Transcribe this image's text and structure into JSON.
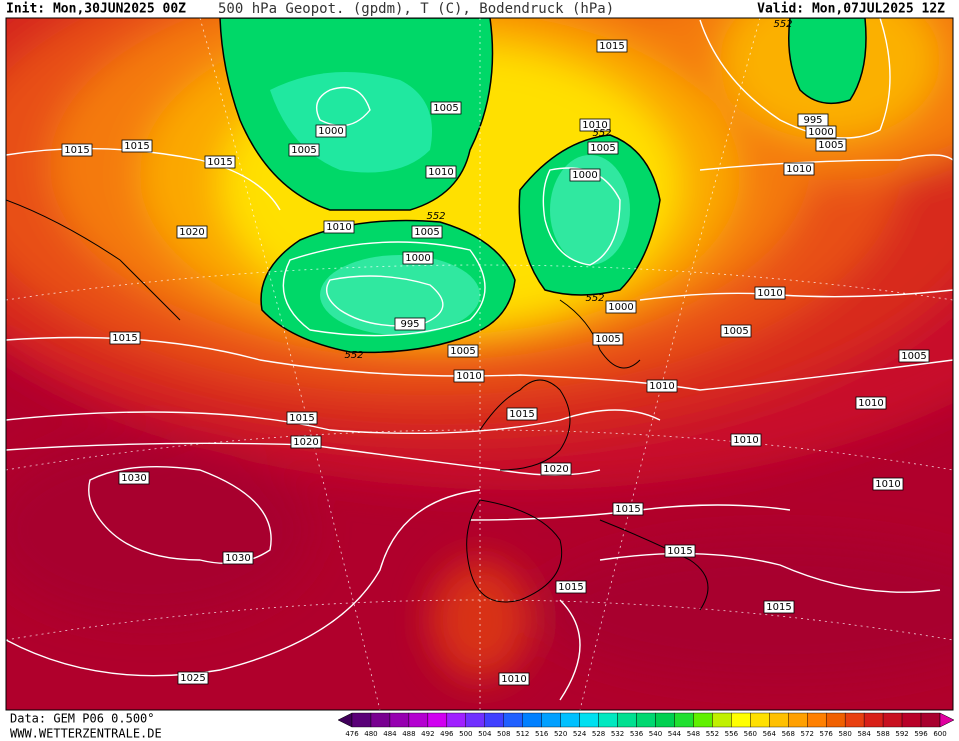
{
  "header": {
    "init": "Init: Mon,30JUN2025 00Z",
    "title": "500 hPa Geopot. (gpdm), T (C), Bodendruck (hPa)",
    "valid": "Valid: Mon,07JUL2025 12Z"
  },
  "map": {
    "labels": [
      "1015",
      "552",
      "1005",
      "1000",
      "1005",
      "1015",
      "1015",
      "1015",
      "1010",
      "1010",
      "552",
      "1005",
      "995",
      "1000",
      "1005",
      "1010",
      "1000",
      "552",
      "1010",
      "1005",
      "1020",
      "1000",
      "1010",
      "552",
      "1000",
      "995",
      "1005",
      "1015",
      "1005",
      "552",
      "1005",
      "1005",
      "1010",
      "1010",
      "1010",
      "1015",
      "1015",
      "1020",
      "1010",
      "1030",
      "1020",
      "1010",
      "1015",
      "1030",
      "1015",
      "1015",
      "1015",
      "1025",
      "1010"
    ]
  },
  "footer": {
    "data": "Data: GEM P06 0.500°",
    "site": "WWW.WETTERZENTRALE.DE"
  },
  "legend": {
    "values": [
      476,
      480,
      484,
      488,
      492,
      496,
      500,
      504,
      508,
      512,
      516,
      520,
      524,
      528,
      532,
      536,
      540,
      544,
      548,
      552,
      556,
      560,
      564,
      568,
      572,
      576,
      580,
      584,
      588,
      592,
      596,
      600
    ],
    "colors": [
      "#40005a",
      "#5a0078",
      "#780090",
      "#9600b0",
      "#b400d0",
      "#d000f0",
      "#a020ff",
      "#7030ff",
      "#4040ff",
      "#2060ff",
      "#0080ff",
      "#00a0ff",
      "#00c0ff",
      "#00e0f0",
      "#00e8c0",
      "#00e090",
      "#00d870",
      "#00d050",
      "#20e030",
      "#60f000",
      "#c0f000",
      "#ffff00",
      "#ffe000",
      "#ffc000",
      "#ffa000",
      "#ff8000",
      "#f06000",
      "#e84010",
      "#d82018",
      "#c81020",
      "#b80028",
      "#a8002e",
      "#e000a0"
    ]
  }
}
